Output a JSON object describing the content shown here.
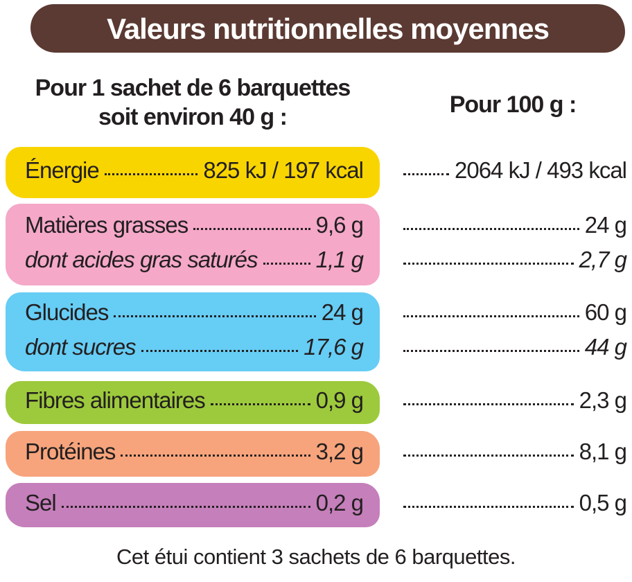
{
  "header": {
    "title": "Valeurs nutritionnelles moyennes"
  },
  "columns": {
    "per_portion": [
      "Pour 1 sachet de 6 barquettes",
      "soit environ 40 g :"
    ],
    "per_100g": "Pour 100 g :"
  },
  "groups": [
    {
      "color": "#f9d500",
      "rows": [
        {
          "label": "Énergie",
          "portion": "825 kJ / 197 kcal",
          "per_100g": "2064 kJ / 493 kcal",
          "italic": false
        }
      ]
    },
    {
      "color": "#f5a8c8",
      "rows": [
        {
          "label": "Matières grasses",
          "portion": "9,6 g",
          "per_100g": "24 g",
          "italic": false
        },
        {
          "label": "dont acides gras saturés",
          "portion": "1,1 g",
          "per_100g": "2,7 g",
          "italic": true
        }
      ]
    },
    {
      "color": "#66cdf5",
      "rows": [
        {
          "label": "Glucides",
          "portion": "24 g",
          "per_100g": "60 g",
          "italic": false
        },
        {
          "label": "dont sucres",
          "portion": "17,6 g",
          "per_100g": "44 g",
          "italic": true
        }
      ]
    },
    {
      "color": "#9dca3c",
      "rows": [
        {
          "label": "Fibres alimentaires",
          "portion": "0,9 g",
          "per_100g": "2,3 g",
          "italic": false
        }
      ]
    },
    {
      "color": "#f7a47c",
      "rows": [
        {
          "label": "Protéines",
          "portion": "3,2 g",
          "per_100g": "8,1 g",
          "italic": false
        }
      ]
    },
    {
      "color": "#c57fbb",
      "rows": [
        {
          "label": "Sel",
          "portion": "0,2 g",
          "per_100g": "0,5 g",
          "italic": false
        }
      ]
    }
  ],
  "footer": "Cet étui contient 3 sachets de 6 barquettes."
}
